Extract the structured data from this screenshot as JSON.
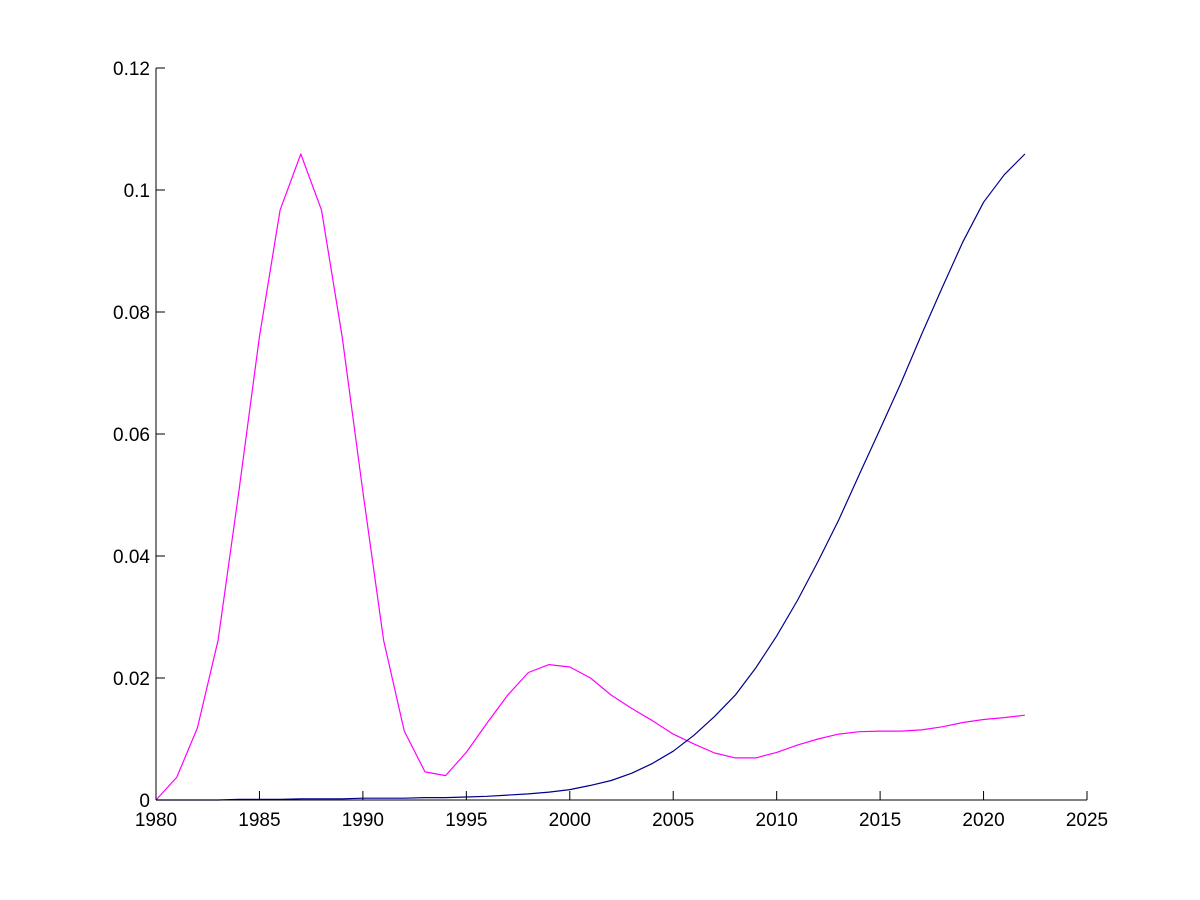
{
  "chart_data": {
    "type": "line",
    "title": "",
    "xlabel": "",
    "ylabel": "",
    "xlim": [
      1980,
      2025
    ],
    "ylim": [
      0,
      0.12
    ],
    "grid": false,
    "legend": "none",
    "x_ticks": [
      1980,
      1985,
      1990,
      1995,
      2000,
      2005,
      2010,
      2015,
      2020,
      2025
    ],
    "x_tick_labels": [
      "1980",
      "1985",
      "1990",
      "1995",
      "2000",
      "2005",
      "2010",
      "2015",
      "2020",
      "2025"
    ],
    "y_ticks": [
      0,
      0.02,
      0.04,
      0.06,
      0.08,
      0.1,
      0.12
    ],
    "y_tick_labels": [
      "0",
      "0.02",
      "0.04",
      "0.06",
      "0.08",
      "0.1",
      "0.12"
    ],
    "x": [
      1980,
      1981,
      1982,
      1983,
      1984,
      1985,
      1986,
      1987,
      1988,
      1989,
      1990,
      1991,
      1992,
      1993,
      1994,
      1995,
      1996,
      1997,
      1998,
      1999,
      2000,
      2001,
      2002,
      2003,
      2004,
      2005,
      2006,
      2007,
      2008,
      2009,
      2010,
      2011,
      2012,
      2013,
      2014,
      2015,
      2016,
      2017,
      2018,
      2019,
      2020,
      2021,
      2022
    ],
    "series": [
      {
        "color": "#ff00ff",
        "values": [
          0.0,
          0.0037,
          0.0118,
          0.0262,
          0.0505,
          0.0759,
          0.0967,
          0.1059,
          0.0967,
          0.0759,
          0.0505,
          0.0262,
          0.0113,
          0.0046,
          0.004,
          0.0078,
          0.0126,
          0.0172,
          0.0209,
          0.0222,
          0.0218,
          0.02,
          0.0172,
          0.015,
          0.013,
          0.0108,
          0.0092,
          0.0077,
          0.0069,
          0.0069,
          0.0078,
          0.009,
          0.01,
          0.0108,
          0.0112,
          0.0113,
          0.0113,
          0.0115,
          0.012,
          0.0127,
          0.0132,
          0.0135,
          0.0139
        ]
      },
      {
        "color": "#00008b",
        "values": [
          0.0,
          0.0,
          0.0,
          0.0,
          0.0001,
          0.0001,
          0.0001,
          0.0002,
          0.0002,
          0.0002,
          0.0003,
          0.0003,
          0.0003,
          0.0004,
          0.0004,
          0.0005,
          0.0006,
          0.0008,
          0.001,
          0.0013,
          0.0017,
          0.0024,
          0.0032,
          0.0044,
          0.006,
          0.008,
          0.0106,
          0.0137,
          0.0172,
          0.0217,
          0.0269,
          0.0327,
          0.0391,
          0.0459,
          0.0534,
          0.0608,
          0.0683,
          0.0763,
          0.084,
          0.0915,
          0.098,
          0.1025,
          0.1059
        ]
      }
    ]
  }
}
